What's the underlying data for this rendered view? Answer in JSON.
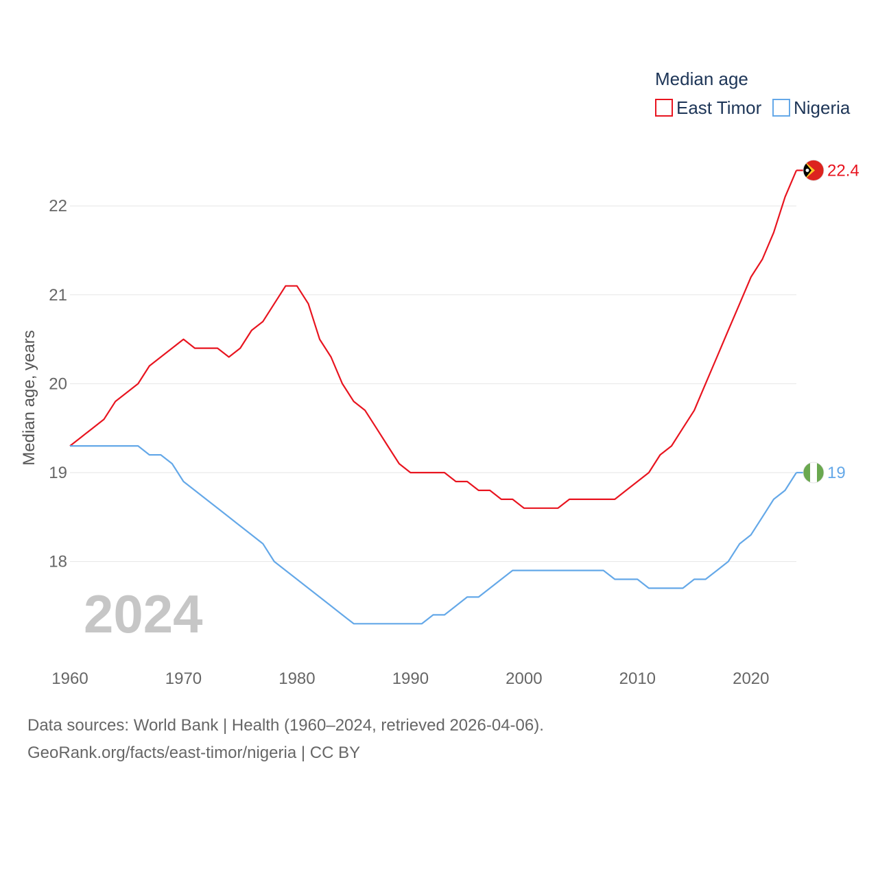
{
  "chart_data": {
    "type": "line",
    "year_display": "2024",
    "ylabel": "Median age, years",
    "xlabel": "",
    "xlim": [
      1960,
      2024
    ],
    "ylim": [
      17,
      22.6
    ],
    "y_ticks": [
      18,
      19,
      20,
      21,
      22
    ],
    "x_ticks": [
      1960,
      1970,
      1980,
      1990,
      2000,
      2010,
      2020
    ],
    "legend": {
      "title": "Median age",
      "position": "top-right"
    },
    "x": [
      1960,
      1961,
      1962,
      1963,
      1964,
      1965,
      1966,
      1967,
      1968,
      1969,
      1970,
      1971,
      1972,
      1973,
      1974,
      1975,
      1976,
      1977,
      1978,
      1979,
      1980,
      1981,
      1982,
      1983,
      1984,
      1985,
      1986,
      1987,
      1988,
      1989,
      1990,
      1991,
      1992,
      1993,
      1994,
      1995,
      1996,
      1997,
      1998,
      1999,
      2000,
      2001,
      2002,
      2003,
      2004,
      2005,
      2006,
      2007,
      2008,
      2009,
      2010,
      2011,
      2012,
      2013,
      2014,
      2015,
      2016,
      2017,
      2018,
      2019,
      2020,
      2021,
      2022,
      2023,
      2024
    ],
    "series": [
      {
        "name": "East Timor",
        "color": "#e8141f",
        "end_label": "22.4",
        "values": [
          19.3,
          19.4,
          19.5,
          19.6,
          19.8,
          19.9,
          20.0,
          20.2,
          20.3,
          20.4,
          20.5,
          20.4,
          20.4,
          20.4,
          20.3,
          20.4,
          20.6,
          20.7,
          20.9,
          21.1,
          21.1,
          20.9,
          20.5,
          20.3,
          20.0,
          19.8,
          19.7,
          19.5,
          19.3,
          19.1,
          19.0,
          19.0,
          19.0,
          19.0,
          18.9,
          18.9,
          18.8,
          18.8,
          18.7,
          18.7,
          18.6,
          18.6,
          18.6,
          18.6,
          18.7,
          18.7,
          18.7,
          18.7,
          18.7,
          18.8,
          18.9,
          19.0,
          19.2,
          19.3,
          19.5,
          19.7,
          20.0,
          20.3,
          20.6,
          20.9,
          21.2,
          21.4,
          21.7,
          22.1,
          22.4
        ]
      },
      {
        "name": "Nigeria",
        "color": "#64a8e8",
        "end_label": "19",
        "values": [
          19.3,
          19.3,
          19.3,
          19.3,
          19.3,
          19.3,
          19.3,
          19.2,
          19.2,
          19.1,
          18.9,
          18.8,
          18.7,
          18.6,
          18.5,
          18.4,
          18.3,
          18.2,
          18.0,
          17.9,
          17.8,
          17.7,
          17.6,
          17.5,
          17.4,
          17.3,
          17.3,
          17.3,
          17.3,
          17.3,
          17.3,
          17.3,
          17.4,
          17.4,
          17.5,
          17.6,
          17.6,
          17.7,
          17.8,
          17.9,
          17.9,
          17.9,
          17.9,
          17.9,
          17.9,
          17.9,
          17.9,
          17.9,
          17.8,
          17.8,
          17.8,
          17.7,
          17.7,
          17.7,
          17.7,
          17.8,
          17.8,
          17.9,
          18.0,
          18.2,
          18.3,
          18.5,
          18.7,
          18.8,
          19.0
        ]
      }
    ]
  },
  "footer": {
    "sources": "Data sources: World Bank | Health (1960–2024, retrieved 2026-04-06).",
    "credit": "GeoRank.org/facts/east-timor/nigeria | CC BY"
  },
  "flags": {
    "east_timor_icon": "east-timor-flag-icon",
    "nigeria_icon": "nigeria-flag-icon",
    "east_timor_colors": [
      "#dc241f",
      "#ffc726",
      "#000000",
      "#ffffff"
    ],
    "nigeria_colors": [
      "#6aa84f",
      "#ffffff"
    ]
  }
}
